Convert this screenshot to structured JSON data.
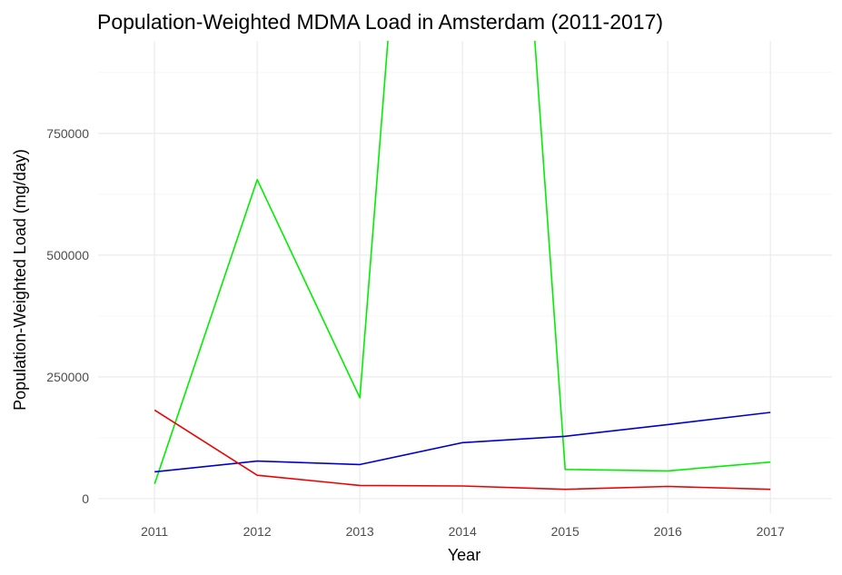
{
  "chart_data": {
    "type": "line",
    "title": "Population-Weighted MDMA Load in Amsterdam (2011-2017)",
    "xlabel": "Year",
    "ylabel": "Population-Weighted Load (mg/day)",
    "x": [
      2011,
      2012,
      2013,
      2014,
      2015,
      2016,
      2017
    ],
    "x_tick_labels": [
      "2011",
      "2012",
      "2013",
      "2014",
      "2015",
      "2016",
      "2017"
    ],
    "xlim": [
      2010.45,
      2017.6
    ],
    "ylim": [
      -30000,
      940000
    ],
    "y_ticks": [
      0,
      250000,
      500000,
      750000
    ],
    "y_tick_labels": [
      "0",
      "250000",
      "500000",
      "750000"
    ],
    "grid": true,
    "legend": "none",
    "series": [
      {
        "color": "#00ee00",
        "values": [
          30000,
          655000,
          207000,
          1550000,
          1550000,
          60000,
          57000,
          75000
        ],
        "x": [
          2011,
          2012,
          2013,
          2013.5,
          2014.5,
          2015,
          2016,
          2017
        ]
      },
      {
        "color": "#0000cd",
        "values": [
          55000,
          77000,
          70000,
          115000,
          128000,
          152000,
          177000
        ]
      },
      {
        "color": "#ee0000",
        "values": [
          182000,
          48000,
          27000,
          26000,
          19000,
          25000,
          19000
        ]
      }
    ]
  }
}
